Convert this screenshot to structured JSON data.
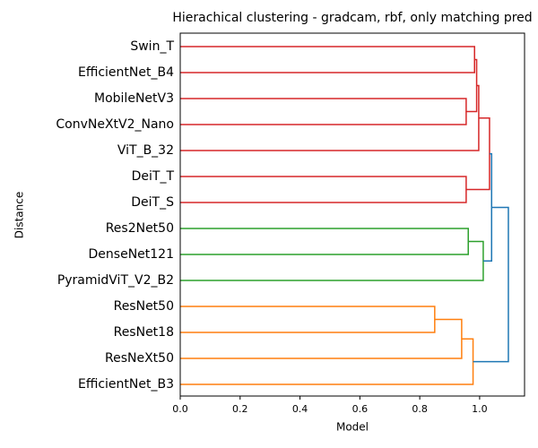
{
  "chart_data": {
    "type": "dendrogram",
    "title": "Hierachical clustering - gradcam, rbf, only matching pred",
    "x_label": "Model",
    "y_label": "Distance",
    "xlim": [
      0,
      1.15
    ],
    "xticks": [
      {
        "value": 0,
        "label": "0.0"
      },
      0.2,
      0.4,
      0.6,
      0.8,
      {
        "value": 1,
        "label": "1.0"
      }
    ],
    "tree": {
      "height": 1.096,
      "color": "#1f77b4",
      "children": [
        {
          "height": 1.04,
          "color": "#1f77b4",
          "children": [
            {
              "height": 1.033,
              "color": "#d62728",
              "children": [
                {
                  "height": 0.997,
                  "color": "#d62728",
                  "children": [
                    {
                      "height": 0.99,
                      "color": "#d62728",
                      "children": [
                        {
                          "height": 0.983,
                          "color": "#d62728",
                          "children": [
                            {
                              "label": "Swin_T"
                            },
                            {
                              "label": "EfficientNet_B4"
                            }
                          ]
                        },
                        {
                          "height": 0.955,
                          "color": "#d62728",
                          "children": [
                            {
                              "label": "MobileNetV3"
                            },
                            {
                              "label": "ConvNeXtV2_Nano"
                            }
                          ]
                        }
                      ]
                    },
                    {
                      "label": "ViT_B_32"
                    }
                  ]
                },
                {
                  "height": 0.955,
                  "color": "#d62728",
                  "children": [
                    {
                      "label": "DeiT_T"
                    },
                    {
                      "label": "DeiT_S"
                    }
                  ]
                }
              ]
            },
            {
              "height": 1.012,
              "color": "#2ca02c",
              "children": [
                {
                  "height": 0.962,
                  "color": "#2ca02c",
                  "children": [
                    {
                      "label": "Res2Net50"
                    },
                    {
                      "label": "DenseNet121"
                    }
                  ]
                },
                {
                  "label": "PyramidViT_V2_B2"
                }
              ]
            }
          ]
        },
        {
          "height": 0.978,
          "color": "#ff7f0e",
          "children": [
            {
              "height": 0.94,
              "color": "#ff7f0e",
              "children": [
                {
                  "height": 0.85,
                  "color": "#ff7f0e",
                  "children": [
                    {
                      "label": "ResNet50"
                    },
                    {
                      "label": "ResNet18"
                    }
                  ]
                },
                {
                  "label": "ResNeXt50"
                }
              ]
            },
            {
              "label": "EfficientNet_B3"
            }
          ]
        }
      ]
    }
  }
}
